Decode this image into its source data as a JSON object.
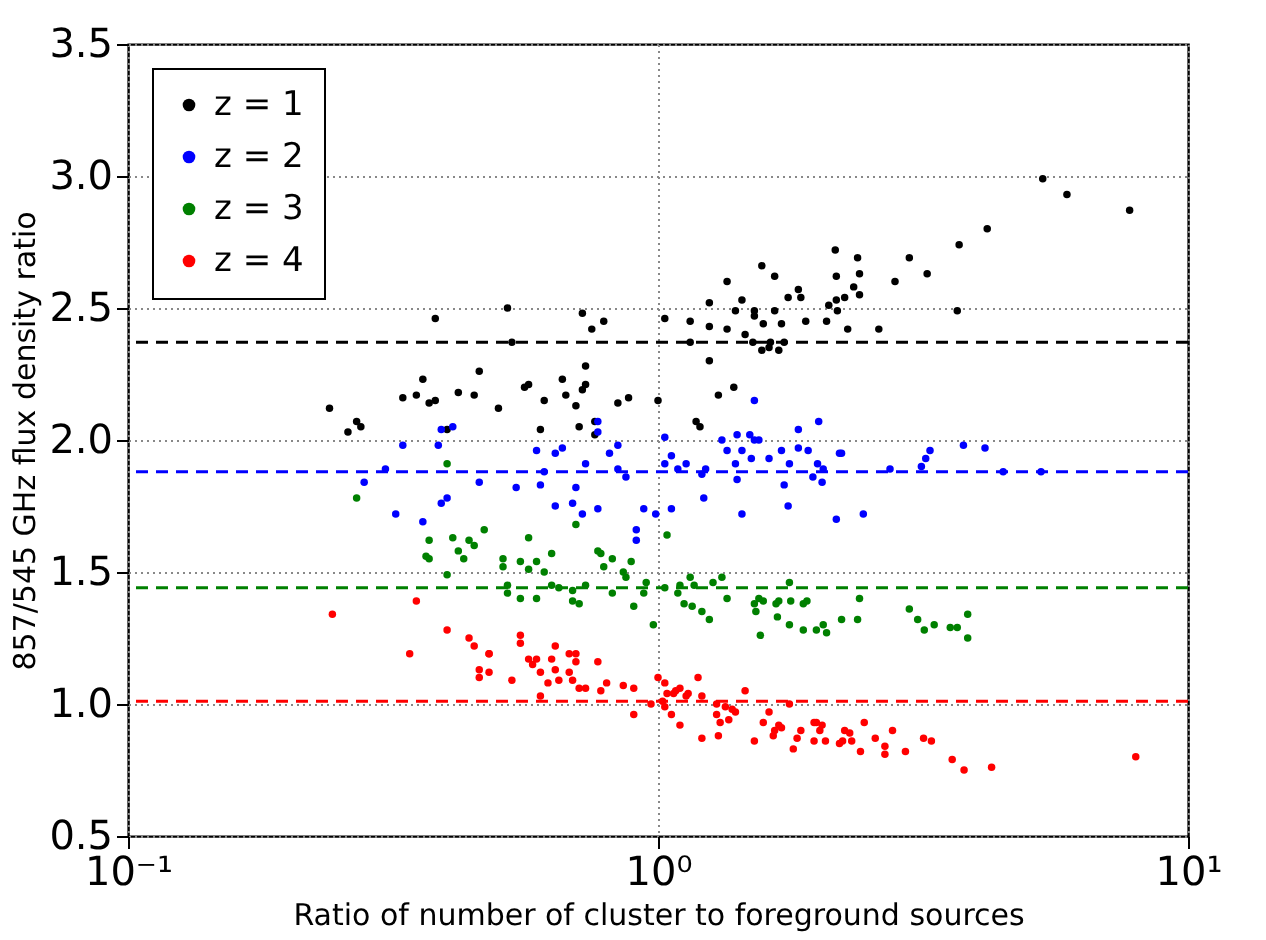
{
  "chart_data": {
    "type": "scatter",
    "xlabel": "Ratio of number of cluster to foreground sources",
    "ylabel": "857/545 GHz flux density ratio",
    "log": "x",
    "grid": true,
    "legend": "top left",
    "marker": "circle",
    "xlim": [
      0.1,
      10
    ],
    "ylim": [
      0.5,
      3.5
    ],
    "xticks": [
      {
        "value": 0.1,
        "label": "10⁻¹"
      },
      {
        "value": 1,
        "label": "10⁰"
      },
      {
        "value": 10,
        "label": "10¹"
      }
    ],
    "yticks": [
      0.5,
      {
        "value": 1,
        "label": "1.0"
      },
      1.5,
      {
        "value": 2,
        "label": "2.0"
      },
      2.5,
      {
        "value": 3,
        "label": "3.0"
      },
      3.5
    ],
    "series": [
      {
        "name": "z = 1",
        "color": "#000000",
        "x": [
          0.24,
          0.26,
          0.27,
          0.275,
          0.33,
          0.35,
          0.36,
          0.37,
          0.38,
          0.38,
          0.4,
          0.42,
          0.45,
          0.46,
          0.5,
          0.52,
          0.53,
          0.56,
          0.57,
          0.6,
          0.61,
          0.66,
          0.67,
          0.7,
          0.71,
          0.72,
          0.73,
          0.72,
          0.73,
          0.75,
          0.76,
          0.76,
          0.79,
          0.84,
          0.88,
          1.0,
          1.18,
          1.2,
          1.03,
          1.15,
          1.15,
          1.25,
          1.25,
          1.25,
          1.3,
          1.35,
          1.35,
          1.39,
          1.4,
          1.44,
          1.46,
          1.51,
          1.52,
          1.52,
          1.57,
          1.57,
          1.58,
          1.62,
          1.63,
          1.66,
          1.66,
          1.69,
          1.71,
          1.73,
          1.76,
          1.84,
          1.86,
          1.9,
          2.08,
          2.1,
          2.16,
          2.17,
          2.17,
          2.18,
          2.25,
          2.28,
          2.34,
          2.38,
          2.4,
          2.4,
          2.61,
          2.8,
          2.98,
          3.22,
          3.67,
          3.7,
          4.18,
          5.32,
          5.91,
          7.76
        ],
        "values": [
          2.12,
          2.03,
          2.07,
          2.05,
          2.16,
          2.17,
          2.23,
          2.14,
          2.15,
          2.46,
          2.04,
          2.18,
          2.17,
          2.26,
          2.12,
          2.5,
          2.37,
          2.2,
          2.21,
          2.04,
          2.15,
          2.23,
          2.17,
          2.13,
          2.05,
          2.19,
          2.21,
          2.48,
          2.28,
          2.42,
          2.07,
          2.02,
          2.45,
          2.14,
          2.16,
          2.15,
          2.07,
          2.05,
          2.46,
          2.45,
          2.37,
          2.43,
          2.3,
          2.52,
          2.17,
          2.42,
          2.6,
          2.2,
          2.49,
          2.53,
          2.4,
          2.37,
          2.49,
          2.47,
          2.66,
          2.34,
          2.44,
          2.35,
          2.37,
          2.62,
          2.49,
          2.34,
          2.44,
          2.37,
          2.54,
          2.57,
          2.54,
          2.45,
          2.45,
          2.51,
          2.72,
          2.62,
          2.53,
          2.49,
          2.54,
          2.42,
          2.58,
          2.69,
          2.63,
          2.55,
          2.42,
          2.6,
          2.69,
          2.63,
          2.49,
          2.74,
          2.8,
          2.99,
          2.93,
          2.87
        ]
      },
      {
        "name": "z = 2",
        "color": "#0000ff",
        "x": [
          0.279,
          0.306,
          0.33,
          0.32,
          0.36,
          0.385,
          0.39,
          0.41,
          0.39,
          0.4,
          0.46,
          0.54,
          0.59,
          0.61,
          0.6,
          0.64,
          0.64,
          0.66,
          0.7,
          0.69,
          0.72,
          0.73,
          0.77,
          0.77,
          0.77,
          0.81,
          0.84,
          0.84,
          0.87,
          0.91,
          0.91,
          0.94,
          0.99,
          1.03,
          1.03,
          1.06,
          1.06,
          1.09,
          1.13,
          1.21,
          1.22,
          1.23,
          1.32,
          1.35,
          1.4,
          1.41,
          1.41,
          1.44,
          1.44,
          1.49,
          1.5,
          1.52,
          1.52,
          1.55,
          1.62,
          1.71,
          1.73,
          1.76,
          1.77,
          1.84,
          1.84,
          1.92,
          1.96,
          2.0,
          2.01,
          2.04,
          2.05,
          2.17,
          2.2,
          2.22,
          2.44,
          2.74,
          3.14,
          3.2,
          3.26,
          3.77,
          4.14,
          4.48,
          5.28
        ],
        "values": [
          1.84,
          1.89,
          1.98,
          1.72,
          1.69,
          1.98,
          2.04,
          2.05,
          1.76,
          1.78,
          1.84,
          1.82,
          1.96,
          1.88,
          1.83,
          1.95,
          1.75,
          1.97,
          1.82,
          1.76,
          1.72,
          1.91,
          2.07,
          2.03,
          1.74,
          1.95,
          1.98,
          1.89,
          1.86,
          1.66,
          1.62,
          1.74,
          1.72,
          2.01,
          1.91,
          1.94,
          1.74,
          1.89,
          1.91,
          1.87,
          1.78,
          1.89,
          2.0,
          1.96,
          1.91,
          2.02,
          1.85,
          1.96,
          1.72,
          2.02,
          1.93,
          2.0,
          2.15,
          2.0,
          1.93,
          1.96,
          1.83,
          1.75,
          1.91,
          2.04,
          1.97,
          1.96,
          1.86,
          1.91,
          2.07,
          1.84,
          1.89,
          1.7,
          1.95,
          1.95,
          1.72,
          1.89,
          1.9,
          1.93,
          1.96,
          1.98,
          1.97,
          1.88,
          1.88
        ]
      },
      {
        "name": "z = 3",
        "color": "#008000",
        "x": [
          0.27,
          0.4,
          0.37,
          0.365,
          0.37,
          0.4,
          0.41,
          0.42,
          0.43,
          0.44,
          0.45,
          0.47,
          0.51,
          0.51,
          0.52,
          0.52,
          0.55,
          0.55,
          0.57,
          0.57,
          0.59,
          0.59,
          0.61,
          0.63,
          0.63,
          0.65,
          0.69,
          0.69,
          0.7,
          0.71,
          0.73,
          0.77,
          0.78,
          0.79,
          0.82,
          0.82,
          0.86,
          0.87,
          0.89,
          0.9,
          0.94,
          0.95,
          0.98,
          1.04,
          1.03,
          1.09,
          1.1,
          1.15,
          1.12,
          1.16,
          1.17,
          1.21,
          1.25,
          1.27,
          1.32,
          1.35,
          1.52,
          1.53,
          1.55,
          1.56,
          1.58,
          1.67,
          1.68,
          1.69,
          1.77,
          1.77,
          1.78,
          1.88,
          1.88,
          1.91,
          1.99,
          2.05,
          2.08,
          2.22,
          2.38,
          2.4,
          2.98,
          3.09,
          3.18,
          3.32,
          3.56,
          3.67,
          3.84,
          3.84
        ],
        "values": [
          1.78,
          1.91,
          1.62,
          1.56,
          1.55,
          1.49,
          1.63,
          1.58,
          1.55,
          1.62,
          1.6,
          1.66,
          1.55,
          1.52,
          1.45,
          1.42,
          1.54,
          1.4,
          1.63,
          1.51,
          1.4,
          1.54,
          1.5,
          1.57,
          1.45,
          1.44,
          1.43,
          1.39,
          1.68,
          1.38,
          1.45,
          1.58,
          1.57,
          1.52,
          1.55,
          1.42,
          1.5,
          1.48,
          1.54,
          1.37,
          1.42,
          1.46,
          1.3,
          1.64,
          1.44,
          1.42,
          1.45,
          1.48,
          1.38,
          1.37,
          1.45,
          1.35,
          1.32,
          1.46,
          1.48,
          1.4,
          1.38,
          1.35,
          1.4,
          1.26,
          1.39,
          1.38,
          1.33,
          1.39,
          1.46,
          1.3,
          1.39,
          1.28,
          1.38,
          1.39,
          1.28,
          1.3,
          1.27,
          1.32,
          1.32,
          1.4,
          1.36,
          1.32,
          1.28,
          1.3,
          1.29,
          1.29,
          1.34,
          1.25
        ]
      },
      {
        "name": "z = 4",
        "color": "#ff0000",
        "x": [
          0.243,
          0.34,
          0.35,
          0.4,
          0.44,
          0.45,
          0.48,
          0.48,
          0.46,
          0.46,
          0.48,
          0.53,
          0.55,
          0.55,
          0.57,
          0.58,
          0.59,
          0.6,
          0.6,
          0.62,
          0.63,
          0.64,
          0.64,
          0.65,
          0.68,
          0.68,
          0.69,
          0.7,
          0.7,
          0.71,
          0.73,
          0.77,
          0.78,
          0.8,
          0.86,
          0.9,
          0.9,
          0.97,
          1.0,
          1.02,
          1.03,
          1.03,
          1.06,
          1.07,
          1.04,
          1.08,
          1.1,
          1.1,
          1.13,
          1.14,
          1.19,
          1.21,
          1.21,
          1.29,
          1.29,
          1.3,
          1.31,
          1.34,
          1.36,
          1.38,
          1.4,
          1.46,
          1.52,
          1.58,
          1.62,
          1.65,
          1.66,
          1.69,
          1.71,
          1.77,
          1.8,
          1.83,
          1.86,
          1.97,
          1.97,
          1.99,
          2.02,
          2.04,
          2.07,
          2.2,
          2.23,
          2.25,
          2.3,
          2.32,
          2.41,
          2.45,
          2.57,
          2.68,
          2.68,
          2.77,
          2.93,
          3.17,
          3.28,
          3.59,
          3.78,
          4.26,
          7.97
        ],
        "values": [
          1.34,
          1.19,
          1.39,
          1.28,
          1.25,
          1.22,
          1.19,
          1.19,
          1.13,
          1.1,
          1.12,
          1.09,
          1.26,
          1.23,
          1.17,
          1.15,
          1.17,
          1.03,
          1.12,
          1.08,
          1.17,
          1.13,
          1.22,
          1.09,
          1.19,
          1.12,
          1.09,
          1.19,
          1.16,
          1.06,
          1.06,
          1.16,
          1.05,
          1.08,
          1.07,
          1.06,
          0.96,
          1.0,
          1.1,
          1.01,
          1.08,
          0.99,
          0.96,
          1.04,
          1.04,
          1.05,
          0.92,
          1.06,
          1.03,
          1.04,
          1.1,
          0.87,
          1.03,
          1.0,
          0.96,
          0.88,
          0.93,
          0.99,
          0.94,
          0.98,
          0.97,
          1.05,
          0.86,
          0.93,
          0.97,
          0.88,
          0.9,
          0.92,
          0.91,
          1.0,
          0.83,
          0.87,
          0.9,
          0.93,
          0.86,
          0.93,
          0.9,
          0.92,
          0.86,
          0.85,
          0.86,
          0.9,
          0.89,
          0.86,
          0.82,
          0.93,
          0.87,
          0.84,
          0.81,
          0.9,
          0.82,
          0.87,
          0.86,
          0.79,
          0.75,
          0.76,
          0.8
        ]
      }
    ],
    "ref_lines": [
      {
        "axis": "y",
        "value": 2.37,
        "color": "#000000",
        "line_style": "dashed"
      },
      {
        "axis": "y",
        "value": 1.88,
        "color": "#0000ff",
        "line_style": "dashed"
      },
      {
        "axis": "y",
        "value": 1.44,
        "color": "#008000",
        "line_style": "dashed"
      },
      {
        "axis": "y",
        "value": 1.01,
        "color": "#ff0000",
        "line_style": "dashed"
      }
    ]
  }
}
